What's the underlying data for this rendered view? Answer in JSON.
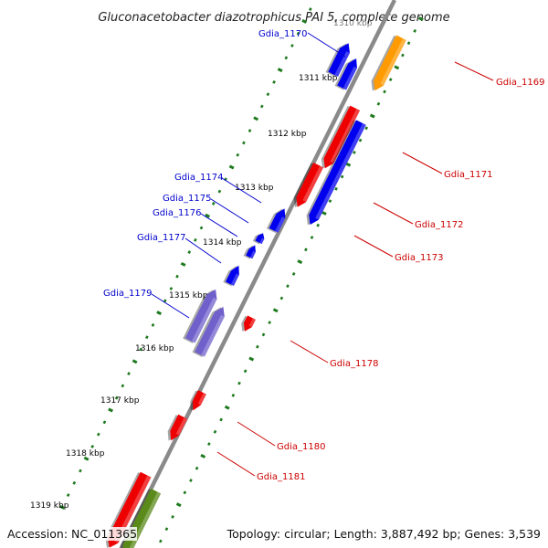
{
  "title": "Gluconacetobacter diazotrophicus PAI 5, complete genome",
  "footer": {
    "accession_label": "Accession:",
    "accession": "NC_011365",
    "topology_text": "Topology: circular; Length: 3,887,492 bp; Genes: 3,539"
  },
  "colors": {
    "backbone": "#8a8a8a",
    "tick": "#1e7a1e",
    "label_left": "#0000cc",
    "label_right": "#cc0000"
  },
  "scale": {
    "unit": "kbp",
    "ticks": [
      "1310 kbp",
      "1311 kbp",
      "1312 kbp",
      "1313 kbp",
      "1314 kbp",
      "1315 kbp",
      "1316 kbp",
      "1317 kbp",
      "1318 kbp",
      "1319 kbp"
    ]
  },
  "genes": [
    {
      "name": "Gdia_1169",
      "color": "#ff9a00",
      "strand": "forward"
    },
    {
      "name": "Gdia_1170",
      "color": "#0000ee",
      "strand": "reverse"
    },
    {
      "name": "Gdia_1171",
      "color": "#ee0000",
      "strand": "forward"
    },
    {
      "name": "Gdia_1172",
      "color": "#ee0000",
      "strand": "forward"
    },
    {
      "name": "Gdia_1173",
      "color": "#0000ee",
      "strand": "forward"
    },
    {
      "name": "Gdia_1174",
      "color": "#0000ee",
      "strand": "reverse"
    },
    {
      "name": "Gdia_1175",
      "color": "#0000ee",
      "strand": "reverse"
    },
    {
      "name": "Gdia_1176",
      "color": "#0000ee",
      "strand": "reverse"
    },
    {
      "name": "Gdia_1177",
      "color": "#0000ee",
      "strand": "reverse"
    },
    {
      "name": "Gdia_1178",
      "color": "#ee0000",
      "strand": "forward"
    },
    {
      "name": "Gdia_1179",
      "color": "#7060cc",
      "strand": "reverse"
    },
    {
      "name": "Gdia_1180",
      "color": "#ee0000",
      "strand": "forward"
    },
    {
      "name": "Gdia_1181",
      "color": "#ee0000",
      "strand": "forward"
    }
  ]
}
